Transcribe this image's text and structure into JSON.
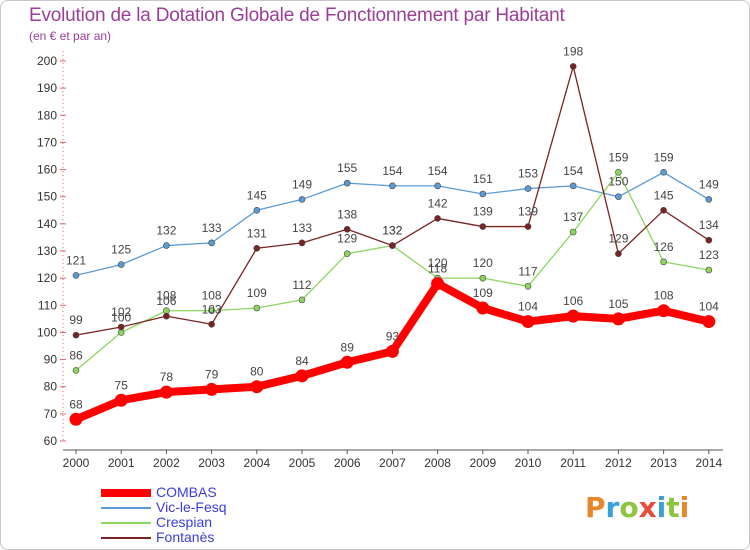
{
  "header": {
    "title": "Evolution de la Dotation Globale de Fonctionnement par Habitant",
    "subtitle": "(en € et par an)"
  },
  "logo": {
    "text": "Proxiti",
    "colors": [
      "#e8862a",
      "#3aa0d8",
      "#8cc63f",
      "#e84c3d",
      "#3aa0d8",
      "#8cc63f",
      "#e8862a"
    ]
  },
  "chart_data": {
    "type": "line",
    "title": "Evolution de la Dotation Globale de Fonctionnement par Habitant",
    "subtitle": "(en € et par an)",
    "xlabel": "",
    "ylabel": "",
    "x": [
      "2000",
      "2001",
      "2002",
      "2003",
      "2004",
      "2005",
      "2006",
      "2007",
      "2008",
      "2009",
      "2010",
      "2011",
      "2012",
      "2013",
      "2014"
    ],
    "yticks": [
      "60",
      "70",
      "80",
      "90",
      "100",
      "110",
      "120",
      "130",
      "140",
      "150",
      "160",
      "170",
      "180",
      "190",
      "200"
    ],
    "ylim": [
      60,
      200
    ],
    "grid": false,
    "legend_position": "bottom-left",
    "series": [
      {
        "name": "COMBAS",
        "color": "#ff0000",
        "values": [
          68,
          75,
          78,
          79,
          80,
          84,
          89,
          93,
          118,
          109,
          104,
          106,
          105,
          108,
          104
        ],
        "labels": [
          "68",
          "75",
          "78",
          "79",
          "80",
          "84",
          "89",
          "93",
          "118",
          "109",
          "104",
          "106",
          "105",
          "108",
          "104"
        ]
      },
      {
        "name": "Vic-le-Fesq",
        "color": "#5b9bd5",
        "values": [
          121,
          125,
          132,
          133,
          145,
          149,
          155,
          154,
          154,
          151,
          153,
          154,
          150,
          159,
          149
        ],
        "labels": [
          "121",
          "125",
          "132",
          "133",
          "145",
          "149",
          "155",
          "154",
          "154",
          "151",
          "153",
          "154",
          "150",
          "159",
          "149"
        ]
      },
      {
        "name": "Crespian",
        "color": "#8cd660",
        "values": [
          86,
          100,
          108,
          108,
          109,
          112,
          129,
          132,
          120,
          120,
          117,
          137,
          159,
          126,
          123
        ],
        "labels": [
          "86",
          "100",
          "108",
          "108",
          "109",
          "112",
          "129",
          "132",
          "120",
          "120",
          "117",
          "137",
          "159",
          "126",
          "123"
        ]
      },
      {
        "name": "Fontanès",
        "color": "#7a2323",
        "values": [
          99,
          102,
          106,
          103,
          131,
          133,
          138,
          132,
          142,
          139,
          139,
          198,
          129,
          145,
          134
        ],
        "labels": [
          "99",
          "102",
          "106",
          "103",
          "131",
          "133",
          "138",
          "132",
          "142",
          "139",
          "139",
          "198",
          "129",
          "145",
          "134"
        ]
      }
    ]
  }
}
